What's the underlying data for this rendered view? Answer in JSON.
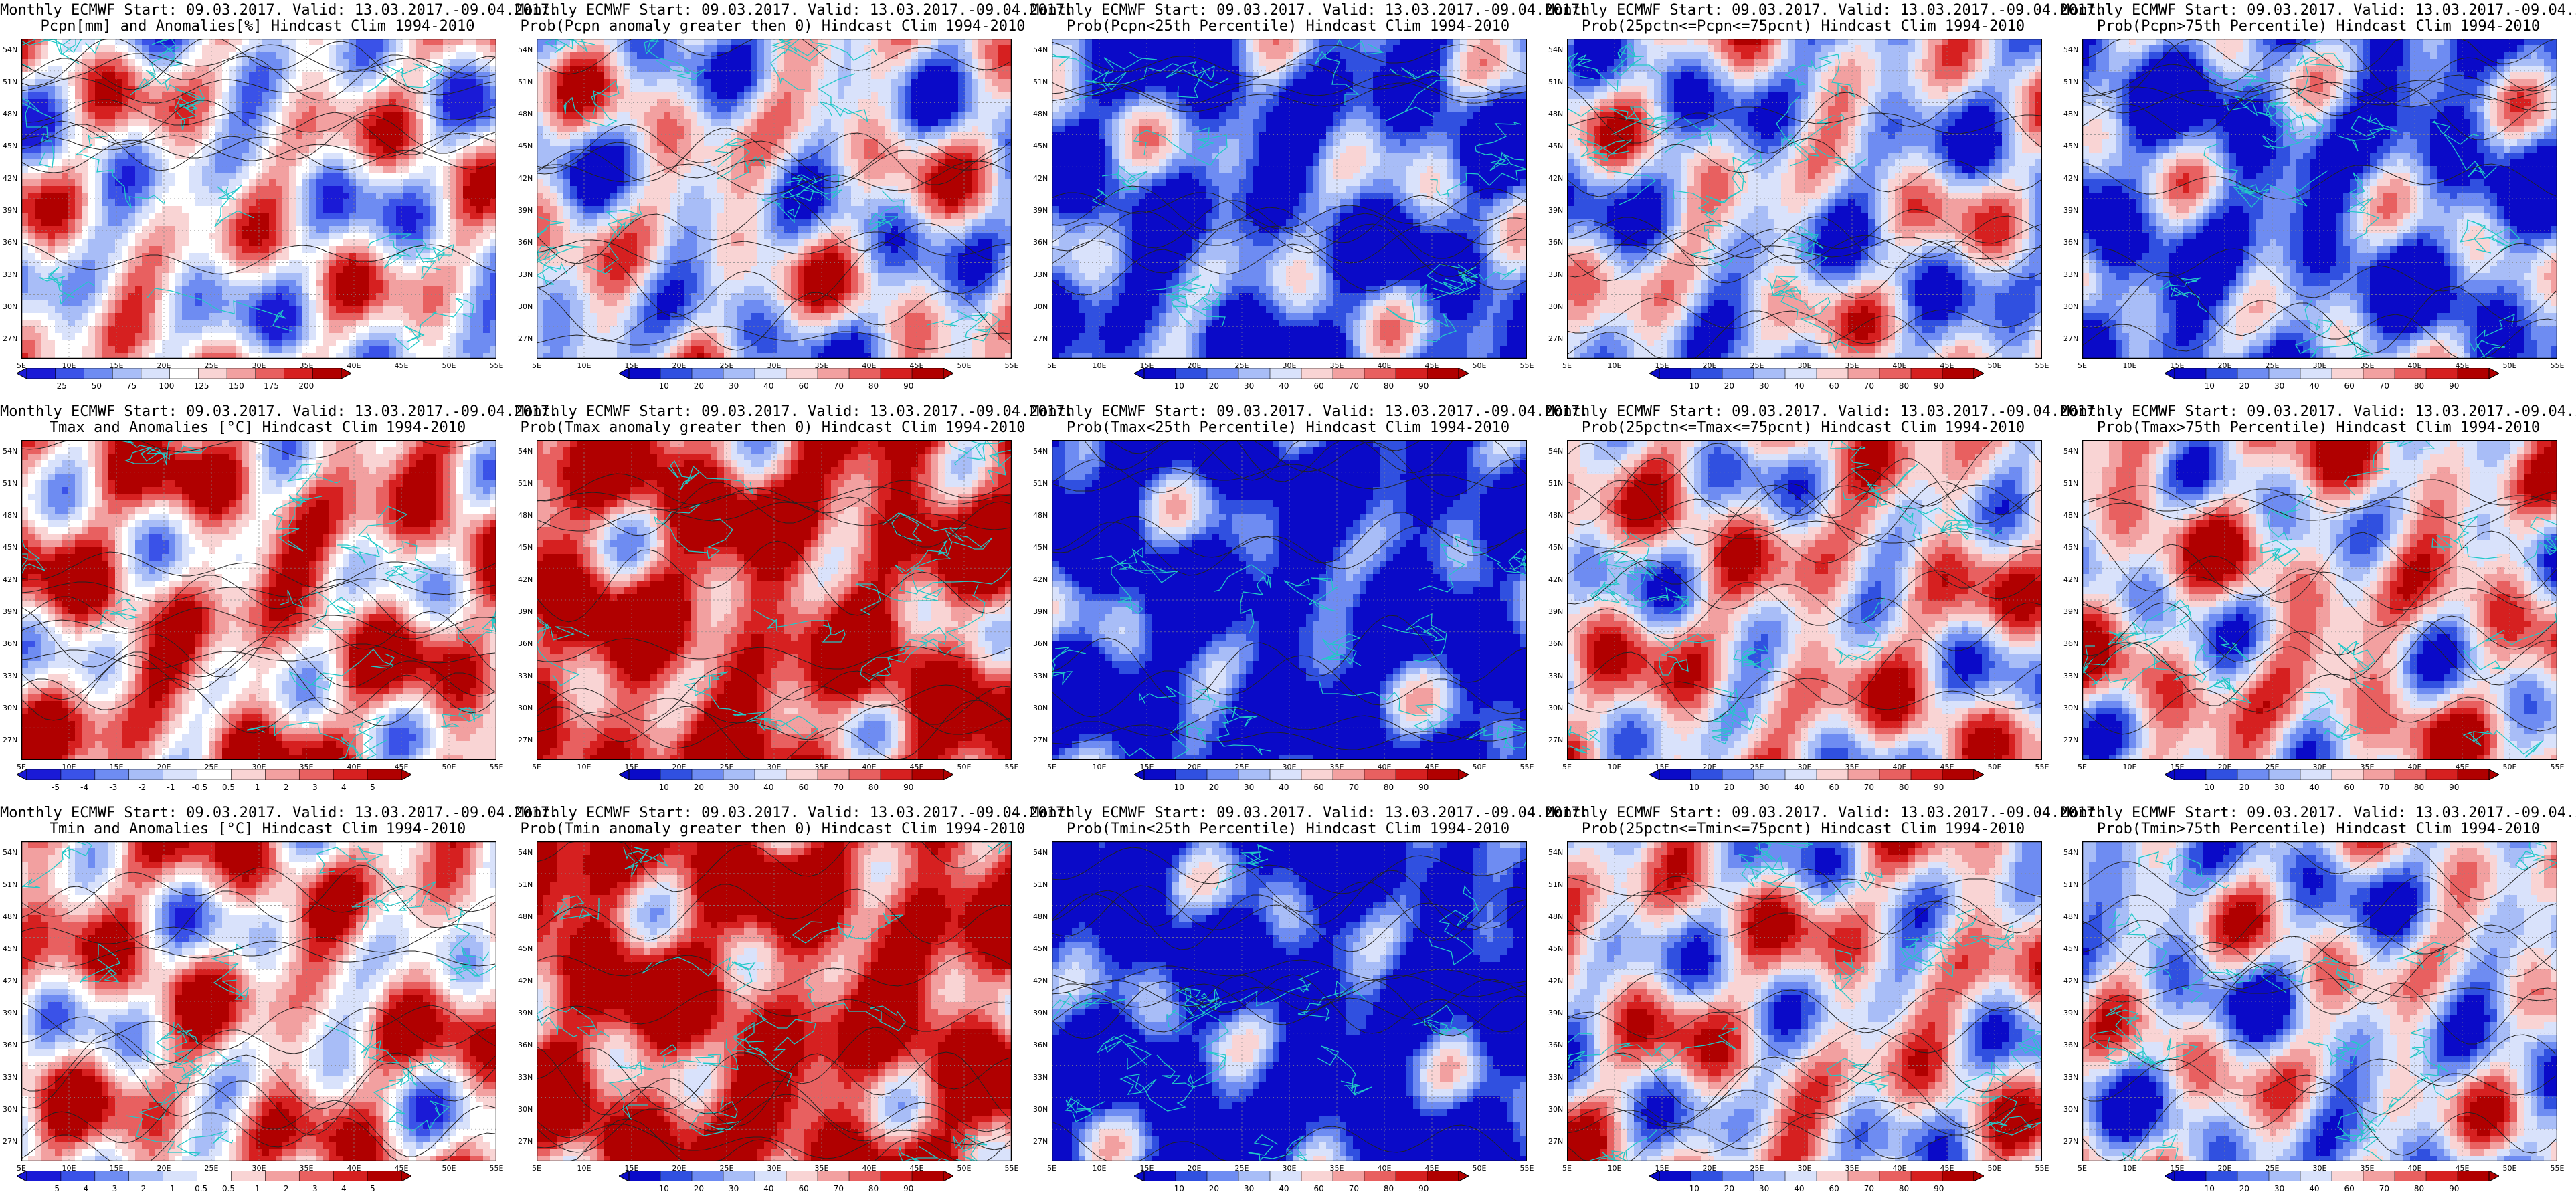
{
  "page": {
    "title_line1": "Monthly ECMWF Start: 09.03.2017. Valid: 13.03.2017.-09.04.2017.",
    "lat_labels": [
      "54N",
      "51N",
      "48N",
      "45N",
      "42N",
      "39N",
      "36N",
      "33N",
      "30N",
      "27N"
    ],
    "lon_labels": [
      "5E",
      "10E",
      "15E",
      "20E",
      "25E",
      "30E",
      "35E",
      "40E",
      "45E",
      "50E",
      "55E"
    ]
  },
  "colormaps": {
    "diverging": [
      "#1a1ad6",
      "#3a52e8",
      "#6e8cf2",
      "#a8bdf7",
      "#d9e2fb",
      "#ffffff",
      "#f9d4d4",
      "#f2a0a0",
      "#e86060",
      "#d62020",
      "#b00000"
    ],
    "sequential": [
      "#0a0ac8",
      "#3050e0",
      "#6e8cf2",
      "#a8bdf7",
      "#d9e2fb",
      "#f9d4d4",
      "#f2a0a0",
      "#e86060",
      "#d62020",
      "#b00000"
    ]
  },
  "panels": [
    {
      "row": 0,
      "col": 0,
      "subtitle": "Pcpn[mm] and Anomalies[%] Hindcast Clim 1994-2010",
      "bias": 0.0,
      "cbar": "pcpn_anom",
      "cbar_ticks": [
        "25",
        "50",
        "75",
        "100",
        "125",
        "150",
        "175",
        "200"
      ]
    },
    {
      "row": 0,
      "col": 1,
      "subtitle": "Prob(Pcpn anomaly greater then 0) Hindcast Clim 1994-2010",
      "bias": -0.1,
      "cbar": "prob",
      "cbar_ticks": [
        "10",
        "20",
        "30",
        "40",
        "60",
        "70",
        "80",
        "90"
      ]
    },
    {
      "row": 0,
      "col": 2,
      "subtitle": "Prob(Pcpn<25th Percentile) Hindcast Clim 1994-2010",
      "bias": -0.7,
      "cbar": "prob",
      "cbar_ticks": [
        "10",
        "20",
        "30",
        "40",
        "60",
        "70",
        "80",
        "90"
      ]
    },
    {
      "row": 0,
      "col": 3,
      "subtitle": "Prob(25pctn<=Pcpn<=75pcnt) Hindcast Clim 1994-2010",
      "bias": -0.2,
      "cbar": "prob",
      "cbar_ticks": [
        "10",
        "20",
        "30",
        "40",
        "60",
        "70",
        "80",
        "90"
      ]
    },
    {
      "row": 0,
      "col": 4,
      "subtitle": "Prob(Pcpn>75th Percentile) Hindcast Clim 1994-2010",
      "bias": -0.6,
      "cbar": "prob",
      "cbar_ticks": [
        "10",
        "20",
        "30",
        "40",
        "60",
        "70",
        "80",
        "90"
      ]
    },
    {
      "row": 1,
      "col": 0,
      "subtitle": "Tmax and Anomalies [°C] Hindcast Clim 1994-2010",
      "bias": 0.35,
      "cbar": "temp_anom",
      "cbar_ticks": [
        "-5",
        "-4",
        "-3",
        "-2",
        "-1",
        "-0.5",
        "0.5",
        "1",
        "2",
        "3",
        "4",
        "5"
      ]
    },
    {
      "row": 1,
      "col": 1,
      "subtitle": "Prob(Tmax anomaly greater then 0) Hindcast Clim 1994-2010",
      "bias": 0.7,
      "cbar": "prob",
      "cbar_ticks": [
        "10",
        "20",
        "30",
        "40",
        "60",
        "70",
        "80",
        "90"
      ]
    },
    {
      "row": 1,
      "col": 2,
      "subtitle": "Prob(Tmax<25th Percentile) Hindcast Clim 1994-2010",
      "bias": -0.95,
      "cbar": "prob",
      "cbar_ticks": [
        "10",
        "20",
        "30",
        "40",
        "60",
        "70",
        "80",
        "90"
      ]
    },
    {
      "row": 1,
      "col": 3,
      "subtitle": "Prob(25pctn<=Tmax<=75pcnt) Hindcast Clim 1994-2010",
      "bias": 0.1,
      "cbar": "prob",
      "cbar_ticks": [
        "10",
        "20",
        "30",
        "40",
        "60",
        "70",
        "80",
        "90"
      ]
    },
    {
      "row": 1,
      "col": 4,
      "subtitle": "Prob(Tmax>75th Percentile) Hindcast Clim 1994-2010",
      "bias": 0.1,
      "cbar": "prob",
      "cbar_ticks": [
        "10",
        "20",
        "30",
        "40",
        "60",
        "70",
        "80",
        "90"
      ]
    },
    {
      "row": 2,
      "col": 0,
      "subtitle": "Tmin and Anomalies [°C] Hindcast Clim 1994-2010",
      "bias": 0.25,
      "cbar": "temp_anom",
      "cbar_ticks": [
        "-5",
        "-4",
        "-3",
        "-2",
        "-1",
        "-0.5",
        "0.5",
        "1",
        "2",
        "3",
        "4",
        "5"
      ]
    },
    {
      "row": 2,
      "col": 1,
      "subtitle": "Prob(Tmin anomaly greater then 0) Hindcast Clim 1994-2010",
      "bias": 0.75,
      "cbar": "prob",
      "cbar_ticks": [
        "10",
        "20",
        "30",
        "40",
        "60",
        "70",
        "80",
        "90"
      ]
    },
    {
      "row": 2,
      "col": 2,
      "subtitle": "Prob(Tmin<25th Percentile) Hindcast Clim 1994-2010",
      "bias": -0.95,
      "cbar": "prob",
      "cbar_ticks": [
        "10",
        "20",
        "30",
        "40",
        "60",
        "70",
        "80",
        "90"
      ]
    },
    {
      "row": 2,
      "col": 3,
      "subtitle": "Prob(25pctn<=Tmin<=75pcnt) Hindcast Clim 1994-2010",
      "bias": 0.05,
      "cbar": "prob",
      "cbar_ticks": [
        "10",
        "20",
        "30",
        "40",
        "60",
        "70",
        "80",
        "90"
      ]
    },
    {
      "row": 2,
      "col": 4,
      "subtitle": "Prob(Tmin>75th Percentile) Hindcast Clim 1994-2010",
      "bias": -0.15,
      "cbar": "prob",
      "cbar_ticks": [
        "10",
        "20",
        "30",
        "40",
        "60",
        "70",
        "80",
        "90"
      ]
    }
  ]
}
